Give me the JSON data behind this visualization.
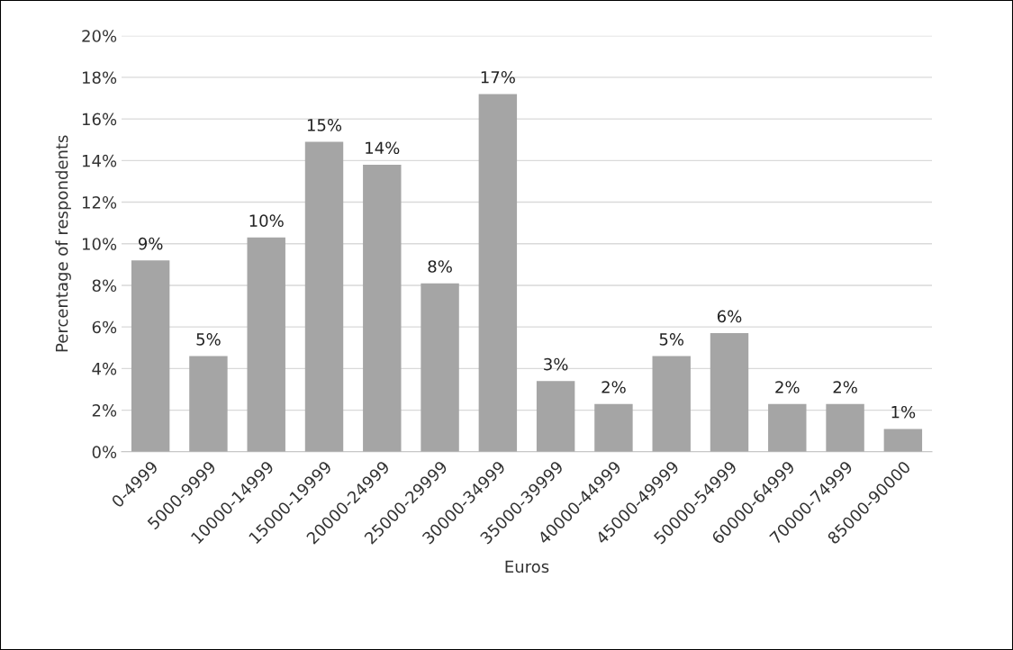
{
  "chart_data": {
    "type": "bar",
    "xlabel": "Euros",
    "ylabel": "Percentage of respondents",
    "categories": [
      "0-4999",
      "5000-9999",
      "10000-14999",
      "15000-19999",
      "20000-24999",
      "25000-29999",
      "30000-34999",
      "35000-39999",
      "40000-44999",
      "45000-49999",
      "50000-54999",
      "60000-64999",
      "70000-74999",
      "85000-90000"
    ],
    "values": [
      9.2,
      4.6,
      10.3,
      14.9,
      13.8,
      8.1,
      17.2,
      3.4,
      2.3,
      4.6,
      5.7,
      2.3,
      2.3,
      1.1
    ],
    "value_labels": [
      "9%",
      "5%",
      "10%",
      "15%",
      "14%",
      "8%",
      "17%",
      "3%",
      "2%",
      "5%",
      "6%",
      "2%",
      "2%",
      "1%"
    ],
    "color": "#a5a5a5",
    "ylim": [
      0,
      20
    ],
    "yticks": [
      {
        "value": 0,
        "label": "0%"
      },
      {
        "value": 2,
        "label": "2%"
      },
      {
        "value": 4,
        "label": "4%"
      },
      {
        "value": 6,
        "label": "6%"
      },
      {
        "value": 8,
        "label": "8%"
      },
      {
        "value": 10,
        "label": "10%"
      },
      {
        "value": 12,
        "label": "12%"
      },
      {
        "value": 14,
        "label": "14%"
      },
      {
        "value": 16,
        "label": "16%"
      },
      {
        "value": 18,
        "label": "18%"
      },
      {
        "value": 20,
        "label": "20%"
      }
    ],
    "grid": "y"
  }
}
